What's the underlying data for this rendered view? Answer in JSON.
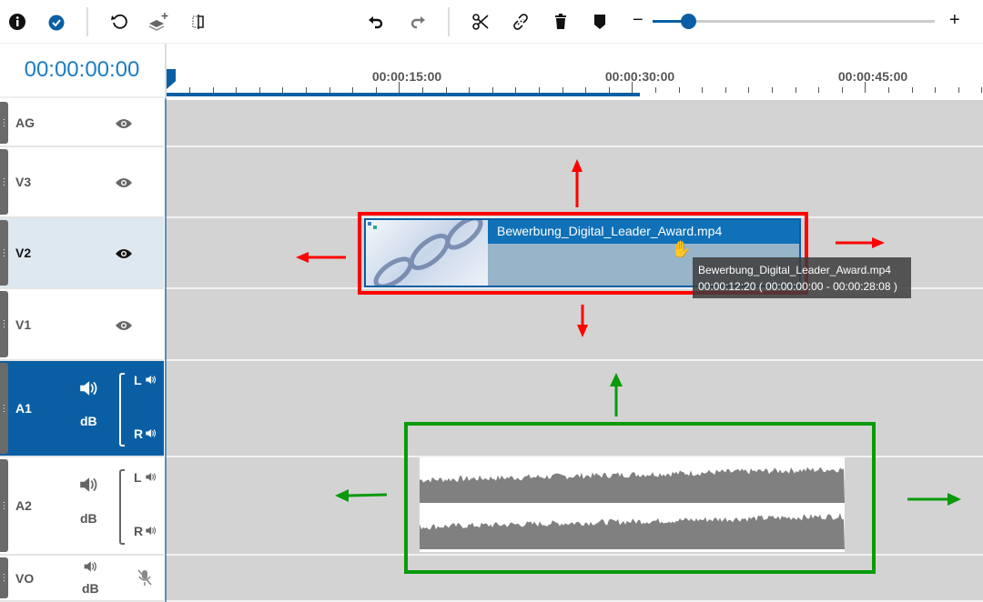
{
  "toolbar": {
    "icons": [
      "info-icon",
      "check-circle-icon",
      "refresh-icon",
      "add-layer-icon",
      "split-icon",
      "undo-icon",
      "redo-icon",
      "scissors-icon",
      "unlink-icon",
      "trash-icon",
      "marker-icon"
    ],
    "zoom_minus": "−",
    "zoom_plus": "+",
    "zoom_level": 0.13,
    "accent": "#0a5fa4"
  },
  "timecode": "00:00:00:00",
  "ruler": {
    "labels": [
      "00:00:15:00",
      "00:00:30:00",
      "00:00:45:00"
    ],
    "progress_end": "00:00:30:00"
  },
  "tracks": [
    {
      "id": "AG",
      "icon": "eye-icon"
    },
    {
      "id": "V3",
      "icon": "eye-icon"
    },
    {
      "id": "V2",
      "icon": "eye-icon",
      "highlighted": true
    },
    {
      "id": "V1",
      "icon": "eye-icon"
    },
    {
      "id": "A1",
      "db": "dB",
      "left": "L",
      "right": "R",
      "selected": true
    },
    {
      "id": "A2",
      "db": "dB",
      "left": "L",
      "right": "R"
    },
    {
      "id": "VO",
      "db": "dB",
      "mic": "mic-muted-icon"
    }
  ],
  "clip": {
    "name": "Bewerbung_Digital_Leader_Award.mp4"
  },
  "tooltip": {
    "title": "Bewerbung_Digital_Leader_Award.mp4",
    "time": "00:00:12:20 ( 00:00:00:00  -  00:00:28:08 )"
  },
  "annotation_colors": {
    "video": "#ff0000",
    "audio": "#0a9a0a"
  }
}
